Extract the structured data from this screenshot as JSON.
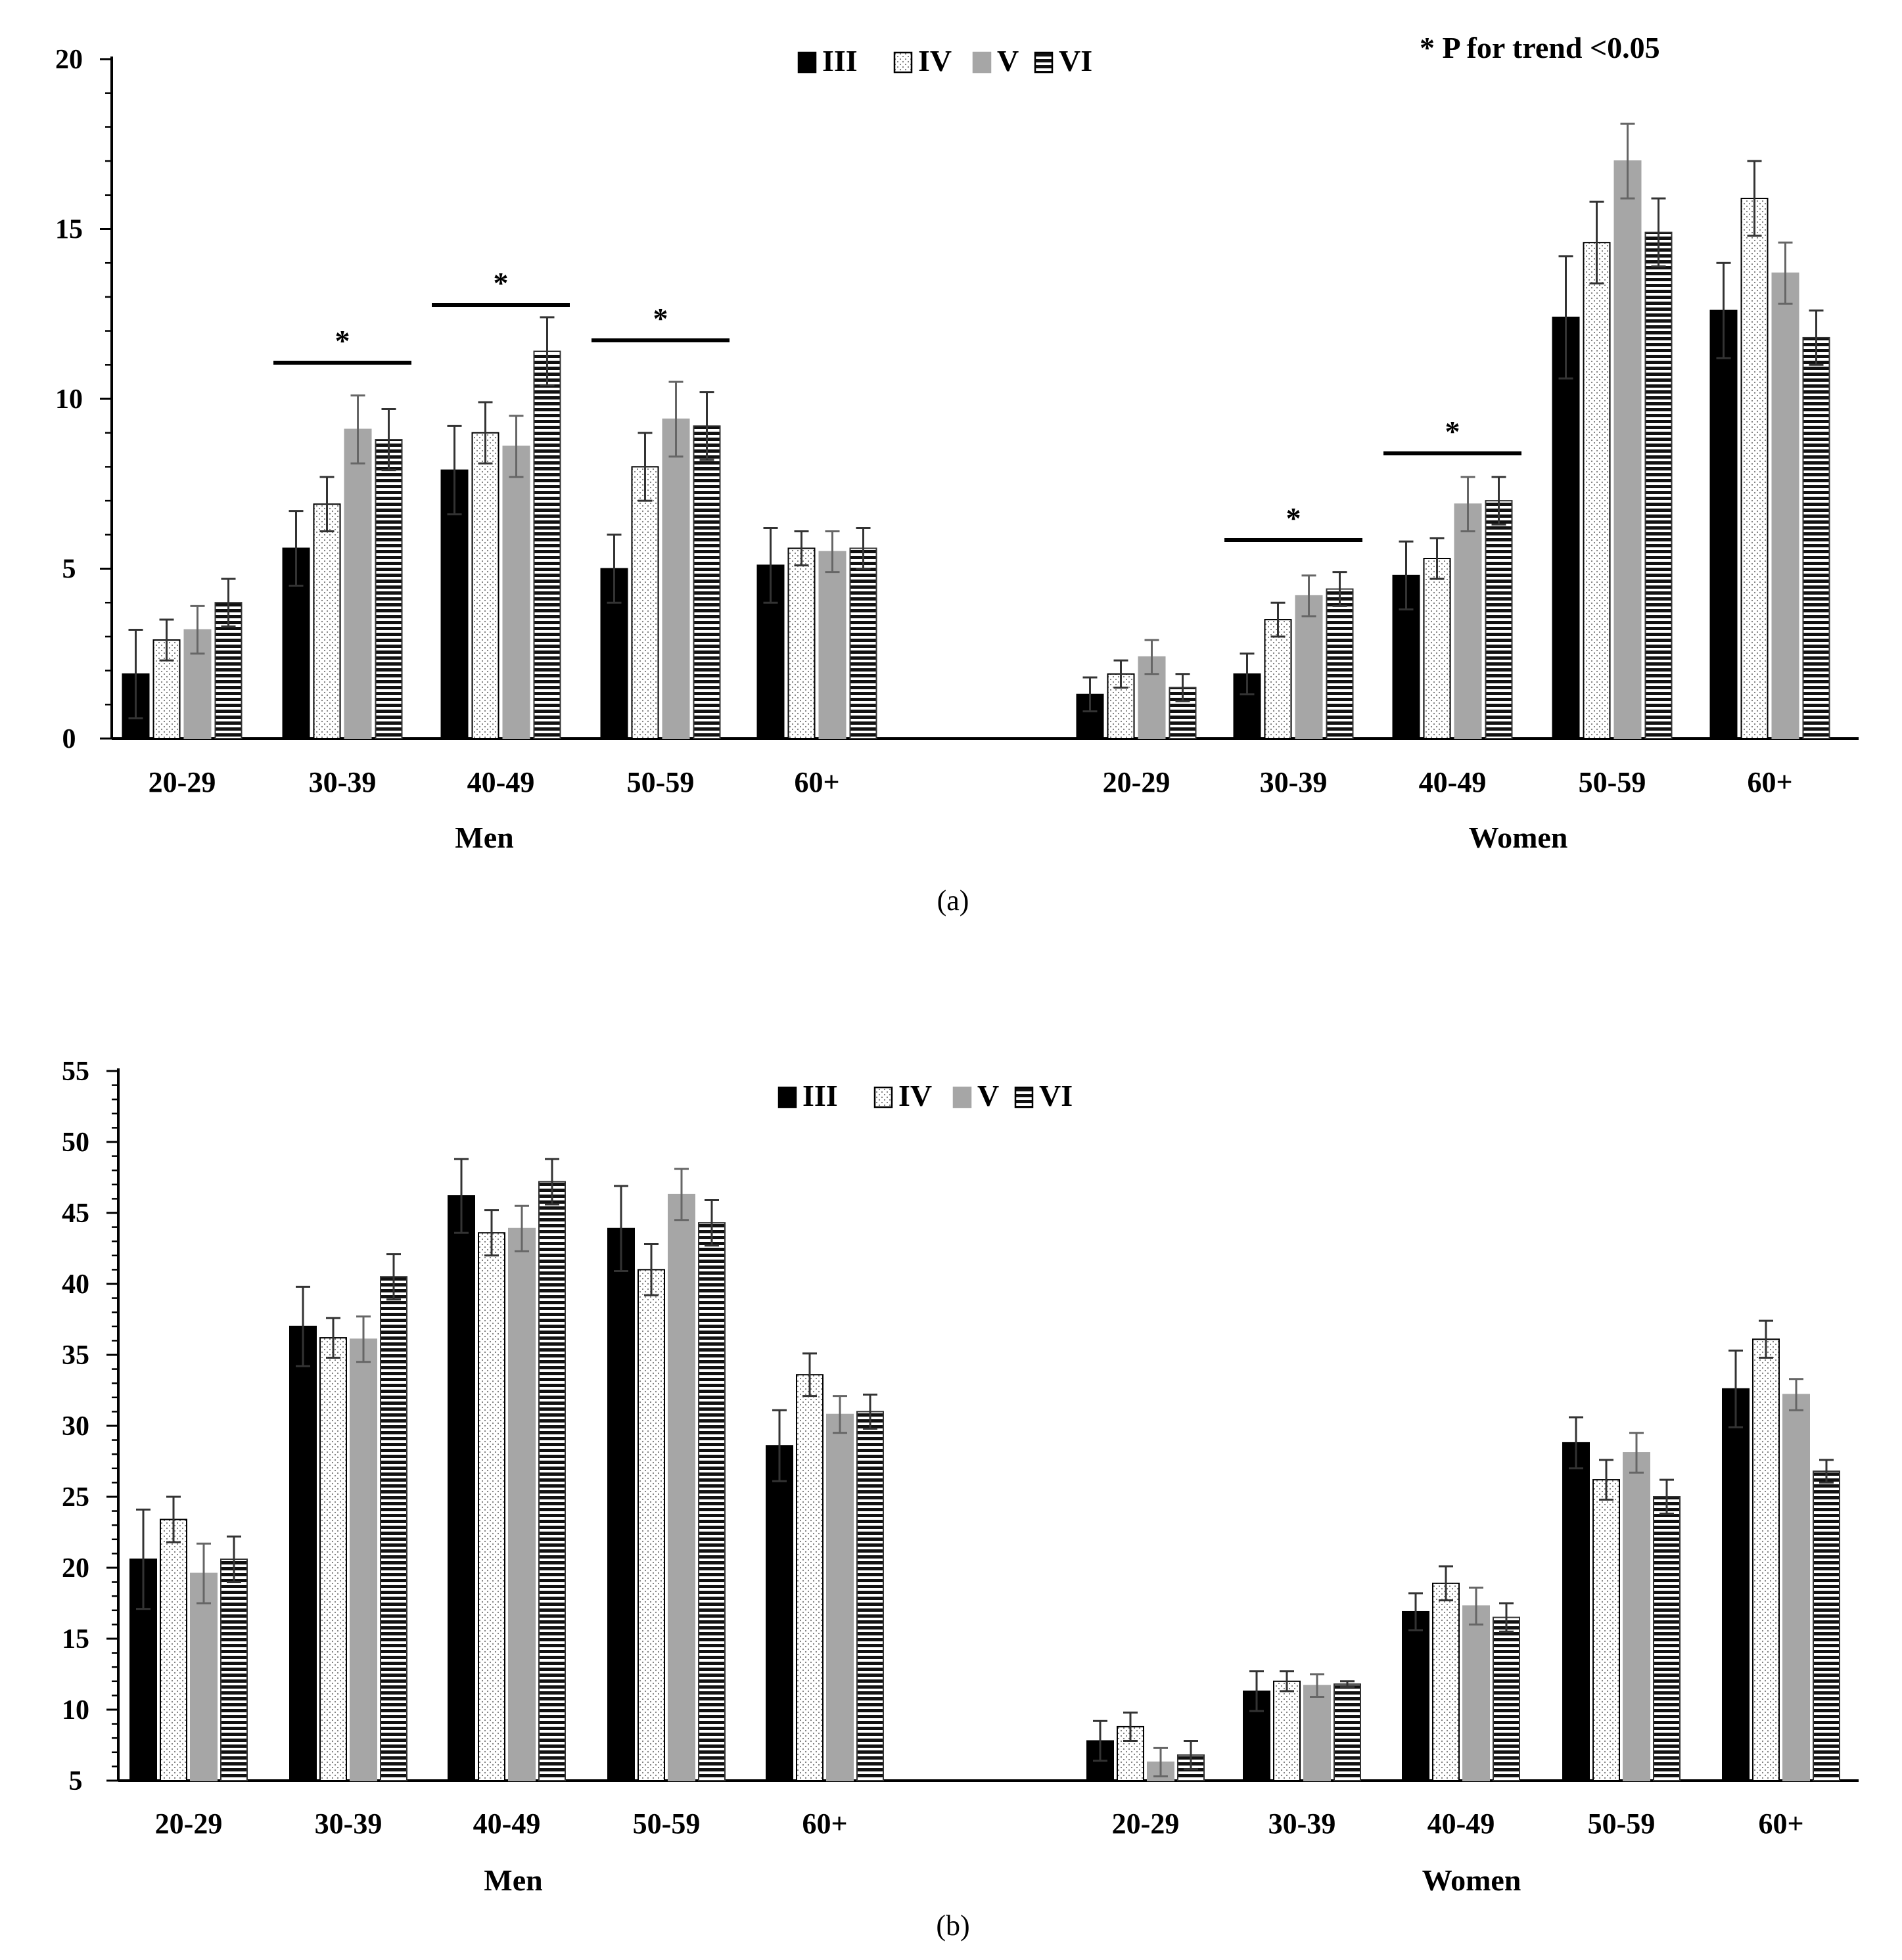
{
  "chart_data": [
    {
      "type": "bar",
      "panel_label": "(a)",
      "annotation": "* P for trend <0.05",
      "ylim": [
        0,
        20
      ],
      "yticks": [
        "0",
        "5",
        "10",
        "15",
        "20"
      ],
      "legend": [
        "III",
        "IV",
        "V",
        "VI"
      ],
      "legend_position": "top-center",
      "groups": [
        {
          "name": "Men",
          "categories": [
            "20-29",
            "30-39",
            "40-49",
            "50-59",
            "60+"
          ],
          "series": [
            {
              "name": "III",
              "values": [
                1.9,
                5.6,
                7.9,
                5.0,
                5.1
              ],
              "errors": [
                1.3,
                1.1,
                1.3,
                1.0,
                1.1
              ]
            },
            {
              "name": "IV",
              "values": [
                2.9,
                6.9,
                9.0,
                8.0,
                5.6
              ],
              "errors": [
                0.6,
                0.8,
                0.9,
                1.0,
                0.5
              ]
            },
            {
              "name": "V",
              "values": [
                3.2,
                9.1,
                8.6,
                9.4,
                5.5
              ],
              "errors": [
                0.7,
                1.0,
                0.9,
                1.1,
                0.6
              ]
            },
            {
              "name": "VI",
              "values": [
                4.0,
                8.8,
                11.4,
                9.2,
                5.6
              ],
              "errors": [
                0.7,
                0.9,
                1.0,
                1.0,
                0.6
              ]
            }
          ],
          "significance": [
            {
              "category": "30-39",
              "label": "*"
            },
            {
              "category": "40-49",
              "label": "*"
            },
            {
              "category": "50-59",
              "label": "*"
            }
          ]
        },
        {
          "name": "Women",
          "categories": [
            "20-29",
            "30-39",
            "40-49",
            "50-59",
            "60+"
          ],
          "series": [
            {
              "name": "III",
              "values": [
                1.3,
                1.9,
                4.8,
                12.4,
                12.6
              ],
              "errors": [
                0.5,
                0.6,
                1.0,
                1.8,
                1.4
              ]
            },
            {
              "name": "IV",
              "values": [
                1.9,
                3.5,
                5.3,
                14.6,
                15.9
              ],
              "errors": [
                0.4,
                0.5,
                0.6,
                1.2,
                1.1
              ]
            },
            {
              "name": "V",
              "values": [
                2.4,
                4.2,
                6.9,
                17.0,
                13.7
              ],
              "errors": [
                0.5,
                0.6,
                0.8,
                1.1,
                0.9
              ]
            },
            {
              "name": "VI",
              "values": [
                1.5,
                4.4,
                7.0,
                14.9,
                11.8
              ],
              "errors": [
                0.4,
                0.5,
                0.7,
                1.0,
                0.8
              ]
            }
          ],
          "significance": [
            {
              "category": "30-39",
              "label": "*"
            },
            {
              "category": "40-49",
              "label": "*"
            }
          ]
        }
      ]
    },
    {
      "type": "bar",
      "panel_label": "(b)",
      "ylim": [
        5,
        55
      ],
      "yticks": [
        "5",
        "10",
        "15",
        "20",
        "25",
        "30",
        "35",
        "40",
        "45",
        "50",
        "55"
      ],
      "legend": [
        "III",
        "IV",
        "V",
        "VI"
      ],
      "legend_position": "top-center",
      "groups": [
        {
          "name": "Men",
          "categories": [
            "20-29",
            "30-39",
            "40-49",
            "50-59",
            "60+"
          ],
          "series": [
            {
              "name": "III",
              "values": [
                20.6,
                37.0,
                46.2,
                43.9,
                28.6
              ],
              "errors": [
                3.5,
                2.8,
                2.6,
                3.0,
                2.5
              ]
            },
            {
              "name": "IV",
              "values": [
                23.4,
                36.2,
                43.6,
                41.0,
                33.6
              ],
              "errors": [
                1.6,
                1.4,
                1.6,
                1.8,
                1.5
              ]
            },
            {
              "name": "V",
              "values": [
                19.6,
                36.1,
                43.9,
                46.3,
                30.8
              ],
              "errors": [
                2.1,
                1.6,
                1.6,
                1.8,
                1.3
              ]
            },
            {
              "name": "VI",
              "values": [
                20.6,
                40.5,
                47.2,
                44.3,
                31.0
              ],
              "errors": [
                1.6,
                1.6,
                1.6,
                1.6,
                1.2
              ]
            }
          ]
        },
        {
          "name": "Women",
          "categories": [
            "20-29",
            "30-39",
            "40-49",
            "50-59",
            "60+"
          ],
          "series": [
            {
              "name": "III",
              "values": [
                7.8,
                11.3,
                16.9,
                28.8,
                32.6
              ],
              "errors": [
                1.4,
                1.4,
                1.3,
                1.8,
                2.7
              ]
            },
            {
              "name": "IV",
              "values": [
                8.8,
                12.0,
                18.9,
                26.2,
                36.1
              ],
              "errors": [
                1.0,
                0.7,
                1.2,
                1.4,
                1.3
              ]
            },
            {
              "name": "V",
              "values": [
                6.3,
                11.7,
                17.3,
                28.1,
                32.2
              ],
              "errors": [
                1.0,
                0.8,
                1.3,
                1.4,
                1.1
              ]
            },
            {
              "name": "VI",
              "values": [
                6.8,
                11.8,
                16.5,
                25.0,
                26.8
              ],
              "errors": [
                1.0,
                0.2,
                1.0,
                1.2,
                0.8
              ]
            }
          ]
        }
      ]
    }
  ]
}
